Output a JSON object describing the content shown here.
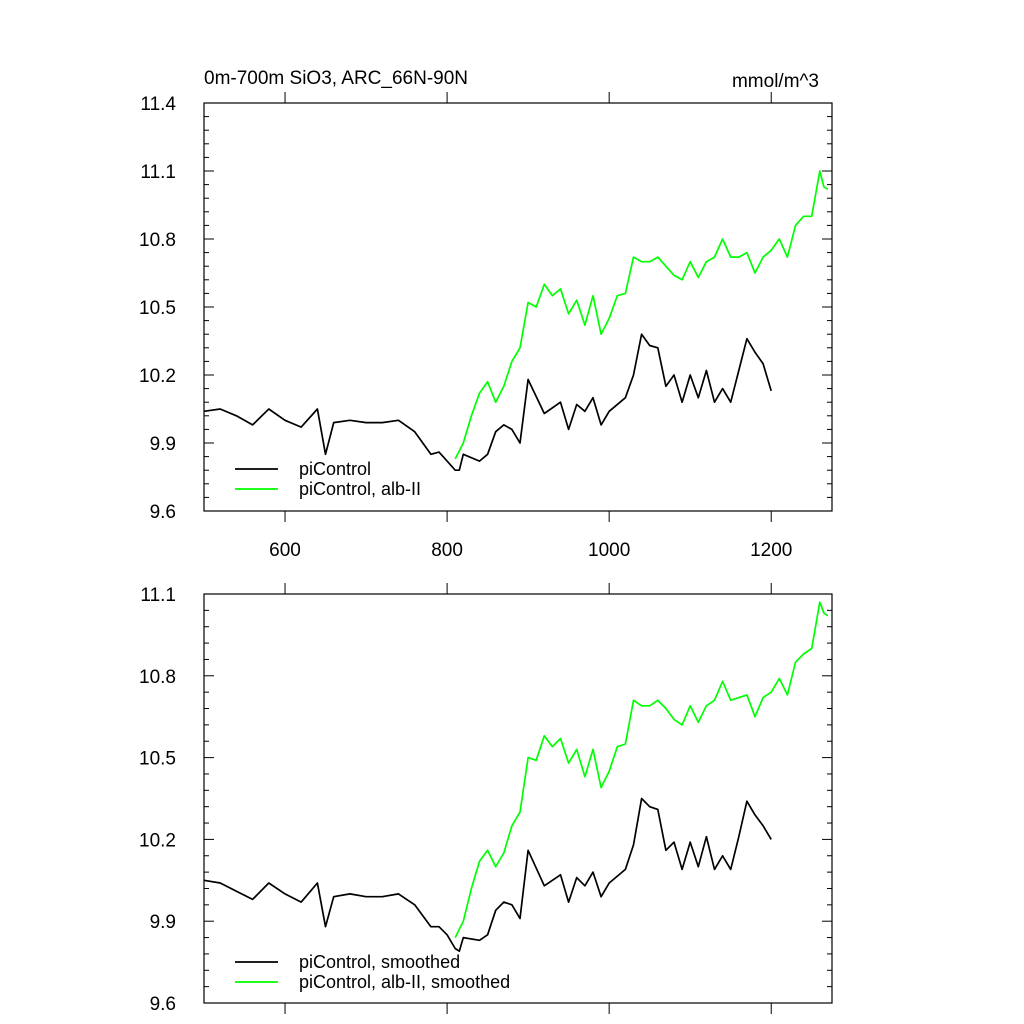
{
  "header": {
    "title": "0m-700m SiO3, ARC_66N-90N",
    "units": "mmol/m^3"
  },
  "chart_data": [
    {
      "type": "line",
      "title": "0m-700m SiO3, ARC_66N-90N",
      "units": "mmol/m^3",
      "xlim": [
        500,
        1275
      ],
      "ylim": [
        9.6,
        11.4
      ],
      "xticks": [
        600,
        800,
        1000,
        1200
      ],
      "yticks": [
        9.6,
        9.9,
        10.2,
        10.5,
        10.8,
        11.1,
        11.4
      ],
      "ytick_labels": [
        "9.6",
        "9.9",
        "10.2",
        "10.5",
        "10.8",
        "11.1",
        "11.4"
      ],
      "legend_position": "bottom-left",
      "series": [
        {
          "name": "piControl",
          "color": "#000000",
          "x": [
            500,
            520,
            540,
            560,
            580,
            600,
            620,
            640,
            650,
            660,
            680,
            700,
            720,
            740,
            760,
            780,
            790,
            800,
            810,
            815,
            820,
            840,
            850,
            860,
            870,
            880,
            890,
            900,
            920,
            940,
            950,
            960,
            970,
            980,
            990,
            1000,
            1020,
            1030,
            1040,
            1050,
            1060,
            1070,
            1080,
            1090,
            1100,
            1110,
            1120,
            1130,
            1140,
            1150,
            1160,
            1170,
            1180,
            1190,
            1200
          ],
          "values": [
            10.04,
            10.05,
            10.02,
            9.98,
            10.05,
            10.0,
            9.97,
            10.05,
            9.85,
            9.99,
            10.0,
            9.99,
            9.99,
            10.0,
            9.95,
            9.85,
            9.86,
            9.82,
            9.78,
            9.78,
            9.85,
            9.82,
            9.85,
            9.95,
            9.98,
            9.96,
            9.9,
            10.18,
            10.03,
            10.08,
            9.96,
            10.07,
            10.04,
            10.1,
            9.98,
            10.04,
            10.1,
            10.2,
            10.38,
            10.33,
            10.32,
            10.15,
            10.2,
            10.08,
            10.2,
            10.1,
            10.22,
            10.08,
            10.14,
            10.08,
            10.22,
            10.36,
            10.3,
            10.25,
            10.13
          ]
        },
        {
          "name": "piControl, alb-II",
          "color": "#00ff00",
          "x": [
            810,
            820,
            830,
            840,
            850,
            860,
            870,
            880,
            890,
            900,
            910,
            920,
            930,
            940,
            950,
            960,
            970,
            980,
            990,
            1000,
            1010,
            1020,
            1030,
            1040,
            1050,
            1060,
            1070,
            1080,
            1090,
            1100,
            1110,
            1120,
            1130,
            1140,
            1150,
            1160,
            1170,
            1180,
            1190,
            1200,
            1210,
            1220,
            1230,
            1240,
            1250,
            1260,
            1265,
            1270
          ],
          "values": [
            9.83,
            9.9,
            10.02,
            10.12,
            10.17,
            10.08,
            10.15,
            10.26,
            10.32,
            10.52,
            10.5,
            10.6,
            10.55,
            10.58,
            10.47,
            10.53,
            10.42,
            10.55,
            10.38,
            10.45,
            10.55,
            10.56,
            10.72,
            10.7,
            10.7,
            10.72,
            10.68,
            10.64,
            10.62,
            10.7,
            10.63,
            10.7,
            10.72,
            10.8,
            10.72,
            10.72,
            10.74,
            10.65,
            10.72,
            10.75,
            10.8,
            10.72,
            10.86,
            10.9,
            10.9,
            11.1,
            11.03,
            11.02
          ]
        }
      ]
    },
    {
      "type": "line",
      "title": "",
      "xlim": [
        500,
        1275
      ],
      "ylim": [
        9.6,
        11.1
      ],
      "xticks": [
        600,
        800,
        1000,
        1200
      ],
      "yticks": [
        9.6,
        9.9,
        10.2,
        10.5,
        10.8,
        11.1
      ],
      "ytick_labels": [
        "9.6",
        "9.9",
        "10.2",
        "10.5",
        "10.8",
        "11.1"
      ],
      "legend_position": "bottom-left",
      "series": [
        {
          "name": "piControl, smoothed",
          "color": "#000000",
          "x": [
            500,
            520,
            540,
            560,
            580,
            600,
            620,
            640,
            650,
            660,
            680,
            700,
            720,
            740,
            760,
            780,
            790,
            800,
            810,
            815,
            820,
            840,
            850,
            860,
            870,
            880,
            890,
            900,
            920,
            940,
            950,
            960,
            970,
            980,
            990,
            1000,
            1020,
            1030,
            1040,
            1050,
            1060,
            1070,
            1080,
            1090,
            1100,
            1110,
            1120,
            1130,
            1140,
            1150,
            1160,
            1170,
            1180,
            1190,
            1200
          ],
          "values": [
            10.05,
            10.04,
            10.01,
            9.98,
            10.04,
            10.0,
            9.97,
            10.04,
            9.88,
            9.99,
            10.0,
            9.99,
            9.99,
            10.0,
            9.96,
            9.88,
            9.88,
            9.85,
            9.8,
            9.79,
            9.84,
            9.83,
            9.85,
            9.94,
            9.97,
            9.96,
            9.91,
            10.16,
            10.03,
            10.07,
            9.97,
            10.06,
            10.03,
            10.08,
            9.99,
            10.04,
            10.09,
            10.18,
            10.35,
            10.32,
            10.31,
            10.16,
            10.19,
            10.09,
            10.19,
            10.1,
            10.21,
            10.09,
            10.14,
            10.09,
            10.21,
            10.34,
            10.29,
            10.25,
            10.2
          ]
        },
        {
          "name": "piControl, alb-II, smoothed",
          "color": "#00ff00",
          "x": [
            810,
            820,
            830,
            840,
            850,
            860,
            870,
            880,
            890,
            900,
            910,
            920,
            930,
            940,
            950,
            960,
            970,
            980,
            990,
            1000,
            1010,
            1020,
            1030,
            1040,
            1050,
            1060,
            1070,
            1080,
            1090,
            1100,
            1110,
            1120,
            1130,
            1140,
            1150,
            1160,
            1170,
            1180,
            1190,
            1200,
            1210,
            1220,
            1230,
            1240,
            1250,
            1260,
            1265,
            1270
          ],
          "values": [
            9.84,
            9.9,
            10.02,
            10.12,
            10.16,
            10.1,
            10.15,
            10.25,
            10.3,
            10.5,
            10.49,
            10.58,
            10.54,
            10.57,
            10.48,
            10.53,
            10.43,
            10.53,
            10.39,
            10.45,
            10.54,
            10.55,
            10.71,
            10.69,
            10.69,
            10.71,
            10.68,
            10.64,
            10.62,
            10.69,
            10.63,
            10.69,
            10.71,
            10.78,
            10.71,
            10.72,
            10.73,
            10.65,
            10.72,
            10.74,
            10.79,
            10.73,
            10.85,
            10.88,
            10.9,
            11.07,
            11.03,
            11.02
          ]
        }
      ]
    }
  ]
}
